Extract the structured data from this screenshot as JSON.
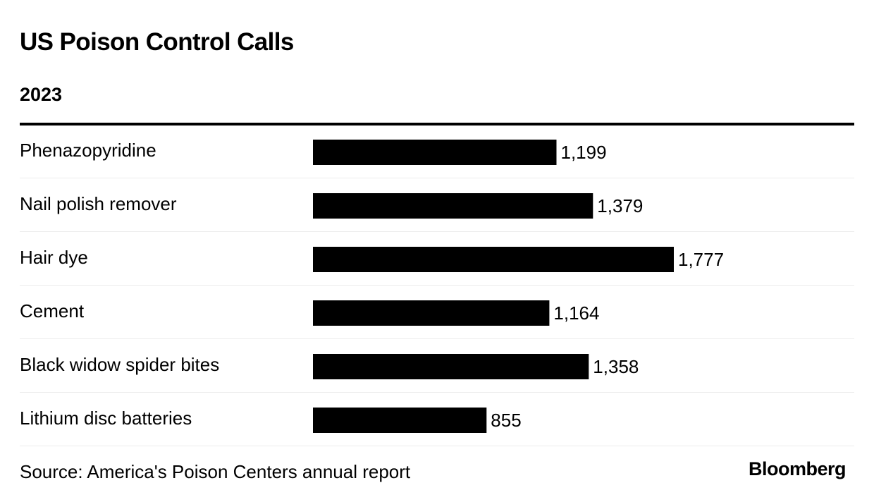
{
  "colors": {
    "bar": "#000000",
    "divider": "#ececec",
    "text": "#000000"
  },
  "brand": "Bloomberg",
  "chart_data": {
    "type": "bar",
    "orientation": "horizontal",
    "title": "US Poison Control Calls",
    "subtitle": "2023",
    "categories": [
      "Phenazopyridine",
      "Nail polish remover",
      "Hair dye",
      "Cement",
      "Black widow spider bites",
      "Lithium disc batteries"
    ],
    "values": [
      1199,
      1379,
      1777,
      1164,
      1358,
      855
    ],
    "value_labels": [
      "1,199",
      "1,379",
      "1,777",
      "1,164",
      "1,358",
      "855"
    ],
    "xlim": [
      0,
      1777
    ],
    "grid": false,
    "legend": "none",
    "source": "Source: America's Poison Centers annual report"
  }
}
